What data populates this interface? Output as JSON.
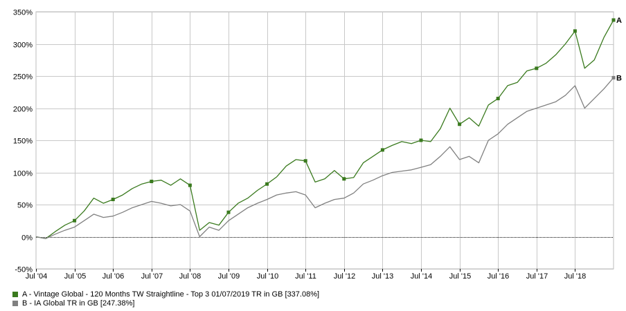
{
  "chart_data": {
    "type": "line",
    "title": "",
    "xlabel": "",
    "ylabel": "",
    "x_tick_labels": [
      "Jul '04",
      "Jul '05",
      "Jul '06",
      "Jul '07",
      "Jul '08",
      "Jul '09",
      "Jul '10",
      "Jul '11",
      "Jul '12",
      "Jul '13",
      "Jul '14",
      "Jul '15",
      "Jul '16",
      "Jul '17",
      "Jul '18"
    ],
    "y_tick_labels": [
      "350%",
      "300%",
      "250%",
      "200%",
      "150%",
      "100%",
      "50%",
      "0%",
      "-50%"
    ],
    "y_ticks": [
      350,
      300,
      250,
      200,
      150,
      100,
      50,
      0,
      -50
    ],
    "ylim": [
      -50,
      350
    ],
    "xlim": [
      "2004-07",
      "2019-07"
    ],
    "grid": true,
    "legend_position": "bottom-left",
    "x": [
      "2004-07",
      "2004-10",
      "2005-01",
      "2005-04",
      "2005-07",
      "2005-10",
      "2006-01",
      "2006-04",
      "2006-07",
      "2006-10",
      "2007-01",
      "2007-04",
      "2007-07",
      "2007-10",
      "2008-01",
      "2008-04",
      "2008-07",
      "2008-10",
      "2009-01",
      "2009-04",
      "2009-07",
      "2009-10",
      "2010-01",
      "2010-04",
      "2010-07",
      "2010-10",
      "2011-01",
      "2011-04",
      "2011-07",
      "2011-10",
      "2012-01",
      "2012-04",
      "2012-07",
      "2012-10",
      "2013-01",
      "2013-04",
      "2013-07",
      "2013-10",
      "2014-01",
      "2014-04",
      "2014-07",
      "2014-10",
      "2015-01",
      "2015-04",
      "2015-07",
      "2015-10",
      "2016-01",
      "2016-04",
      "2016-07",
      "2016-10",
      "2017-01",
      "2017-04",
      "2017-07",
      "2017-10",
      "2018-01",
      "2018-04",
      "2018-07",
      "2018-10",
      "2019-01",
      "2019-04",
      "2019-07"
    ],
    "series": [
      {
        "name": "A - Vintage Global - 120 Months TW Straightline - Top 3 01/07/2019 TR in GB [337.08%]",
        "short_label": "A",
        "color": "#3a7a1e",
        "values": [
          0,
          -3,
          8,
          18,
          25,
          40,
          60,
          52,
          58,
          65,
          75,
          82,
          86,
          88,
          80,
          90,
          80,
          10,
          22,
          18,
          38,
          52,
          60,
          72,
          82,
          93,
          110,
          120,
          118,
          85,
          90,
          103,
          90,
          92,
          115,
          125,
          135,
          142,
          148,
          145,
          150,
          148,
          168,
          200,
          175,
          185,
          172,
          205,
          215,
          235,
          240,
          258,
          262,
          270,
          283,
          300,
          320,
          262,
          275,
          310,
          337.08
        ]
      },
      {
        "name": "B - IA Global TR in GB [247.38%]",
        "short_label": "B",
        "color": "#808080",
        "values": [
          0,
          -3,
          4,
          10,
          15,
          25,
          35,
          30,
          32,
          38,
          45,
          50,
          55,
          52,
          48,
          50,
          40,
          0,
          15,
          10,
          25,
          35,
          45,
          52,
          58,
          65,
          68,
          70,
          65,
          45,
          52,
          58,
          60,
          68,
          82,
          88,
          95,
          100,
          102,
          104,
          108,
          112,
          125,
          140,
          120,
          125,
          115,
          150,
          160,
          175,
          185,
          195,
          200,
          205,
          210,
          220,
          235,
          200,
          215,
          230,
          247.38
        ]
      }
    ]
  },
  "colors": {
    "grid": "#c8c8c8",
    "axis": "#000000",
    "zero_line": "#000000"
  }
}
